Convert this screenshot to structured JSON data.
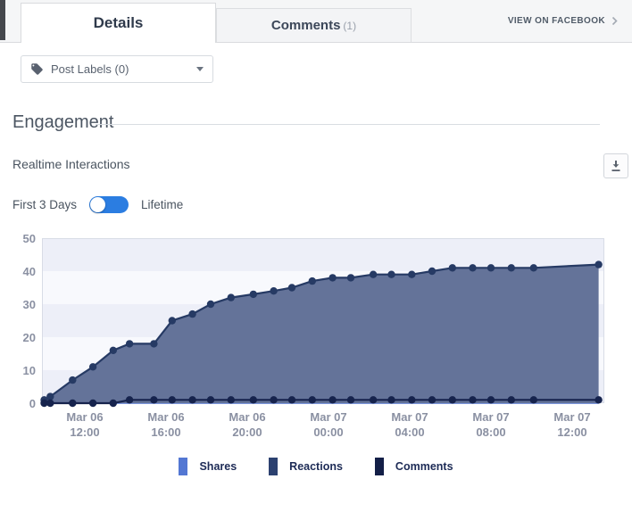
{
  "tabbar": {
    "details_label": "Details",
    "comments_label": "Comments",
    "comments_count": "(1)",
    "view_on_facebook_label": "VIEW ON FACEBOOK"
  },
  "filters": {
    "post_labels_label": "Post Labels (0)"
  },
  "engagement": {
    "section_title": "Engagement",
    "subsection_title": "Realtime Interactions",
    "toggle_left": "First 3 Days",
    "toggle_right": "Lifetime",
    "toggle_accent_color": "#2b7de1"
  },
  "chart_data": {
    "type": "area",
    "title": "Realtime Interactions",
    "ylim": [
      0,
      50
    ],
    "y_ticks": [
      0,
      10,
      20,
      30,
      40,
      50
    ],
    "grid_bands": [
      "#edeff8",
      "#f8f9fd"
    ],
    "legend_position": "bottom",
    "x_ticks": [
      {
        "hour": 2,
        "line1": "Mar 06",
        "line2": "12:00"
      },
      {
        "hour": 6,
        "line1": "Mar 06",
        "line2": "16:00"
      },
      {
        "hour": 10,
        "line1": "Mar 06",
        "line2": "20:00"
      },
      {
        "hour": 14,
        "line1": "Mar 07",
        "line2": "00:00"
      },
      {
        "hour": 18,
        "line1": "Mar 07",
        "line2": "04:00"
      },
      {
        "hour": 22,
        "line1": "Mar 07",
        "line2": "08:00"
      },
      {
        "hour": 26,
        "line1": "Mar 07",
        "line2": "12:00"
      }
    ],
    "x_hours": [
      0,
      0.3,
      1.4,
      2.4,
      3.4,
      4.2,
      5.4,
      6.3,
      7.3,
      8.2,
      9.2,
      10.3,
      11.3,
      12.2,
      13.2,
      14.2,
      15.1,
      16.2,
      17.1,
      18.1,
      19.1,
      20.1,
      21.1,
      22.0,
      23.0,
      24.1,
      27.3
    ],
    "series": [
      {
        "name": "Shares",
        "legend_color": "#5377d3",
        "line_color": "#5377d3",
        "markers": false,
        "values": [
          0,
          0,
          0,
          0,
          0,
          0,
          0,
          0,
          0,
          0,
          0,
          0,
          0,
          0,
          0,
          0,
          0,
          0,
          0,
          0,
          0,
          0,
          0,
          0,
          0,
          0,
          0
        ]
      },
      {
        "name": "Reactions",
        "legend_color": "#2c4170",
        "line_color": "#263a64",
        "fill_color": "#5f6e96",
        "markers": true,
        "values": [
          1,
          2,
          7,
          11,
          16,
          18,
          18,
          25,
          27,
          30,
          32,
          33,
          34,
          35,
          37,
          38,
          38,
          39,
          39,
          39,
          40,
          41,
          41,
          41,
          41,
          41,
          42
        ]
      },
      {
        "name": "Comments",
        "legend_color": "#131f47",
        "line_color": "#16234d",
        "markers": true,
        "values": [
          0,
          0,
          0,
          0,
          0,
          1,
          1,
          1,
          1,
          1,
          1,
          1,
          1,
          1,
          1,
          1,
          1,
          1,
          1,
          1,
          1,
          1,
          1,
          1,
          1,
          1,
          1
        ]
      }
    ]
  }
}
